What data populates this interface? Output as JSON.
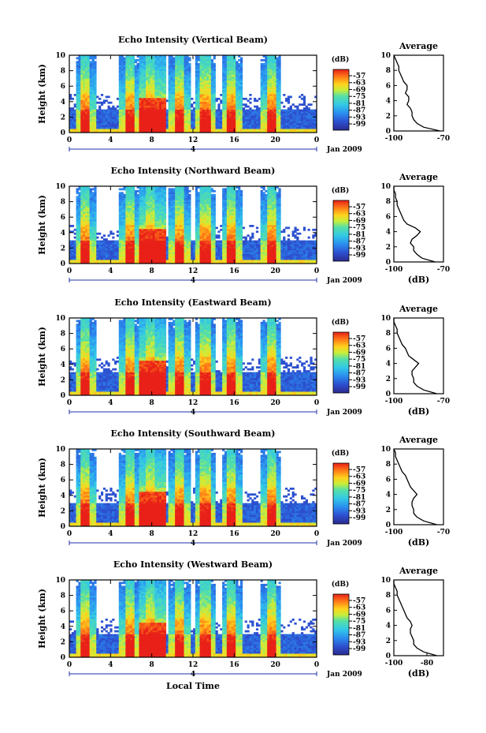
{
  "chart_data": [
    {
      "type": "heatmap",
      "title": "Echo Intensity (Vertical Beam)",
      "ylabel": "Height (km)",
      "x_ticks": [
        "0",
        "4",
        "8",
        "12",
        "16",
        "20",
        "0"
      ],
      "y_ticks": [
        "0",
        "2",
        "4",
        "6",
        "8",
        "10"
      ],
      "xlim": [
        0,
        24
      ],
      "ylim": [
        0,
        10
      ],
      "date_label": "Jan 2009",
      "day_label": "4",
      "colorbar": {
        "label": "(dB)",
        "levels": [
          "-57",
          "-63",
          "-69",
          "-75",
          "-81",
          "-87",
          "-93",
          "-99"
        ],
        "range": [
          -99,
          -57
        ]
      },
      "rain_events_hours": [
        1.6,
        5.8,
        7.8,
        10.7,
        13.2,
        15.8,
        19.6
      ],
      "heavy_rain_hours": [
        6.7,
        9.3
      ],
      "average_profile": {
        "title": "Average",
        "xlabel": "",
        "x_ticks": [
          "-100",
          "-70"
        ],
        "xlim": [
          -100,
          -70
        ],
        "y_ticks": [
          "0",
          "2",
          "4",
          "6",
          "8",
          "10"
        ],
        "x": [
          -72,
          -82,
          -86,
          -88,
          -89,
          -89,
          -90,
          -92,
          -91,
          -91,
          -93,
          -92,
          -92,
          -94,
          -95,
          -96,
          -97,
          -97,
          -98,
          -99,
          -100
        ],
        "y": [
          0,
          0.5,
          1,
          1.5,
          2,
          2.5,
          3,
          3.5,
          4,
          4.5,
          5,
          5.5,
          6,
          6.5,
          7,
          7.5,
          8,
          8.5,
          9,
          9.5,
          10
        ]
      }
    },
    {
      "type": "heatmap",
      "title": "Echo Intensity (Northward Beam)",
      "ylabel": "Height (km)",
      "x_ticks": [
        "0",
        "4",
        "8",
        "12",
        "16",
        "20",
        "0"
      ],
      "y_ticks": [
        "0",
        "2",
        "4",
        "6",
        "8",
        "10"
      ],
      "xlim": [
        0,
        24
      ],
      "ylim": [
        0,
        10
      ],
      "date_label": "Jan 2009",
      "day_label": "4",
      "colorbar": {
        "label": "(dB)",
        "levels": [
          "-57",
          "-63",
          "-69",
          "-75",
          "-81",
          "-87",
          "-93",
          "-99"
        ],
        "range": [
          -99,
          -57
        ]
      },
      "rain_events_hours": [
        1.6,
        5.8,
        7.8,
        10.7,
        13.2,
        15.8,
        19.6
      ],
      "heavy_rain_hours": [
        6.7,
        9.3
      ],
      "average_profile": {
        "title": "Average",
        "xlabel": "(dB)",
        "x_ticks": [
          "-100",
          "-70"
        ],
        "xlim": [
          -100,
          -70
        ],
        "y_ticks": [
          "0",
          "2",
          "4",
          "6",
          "8",
          "10"
        ],
        "x": [
          -75,
          -83,
          -86,
          -88,
          -88,
          -90,
          -89,
          -86,
          -84,
          -87,
          -92,
          -94,
          -95,
          -96,
          -97,
          -98,
          -98,
          -99,
          -99,
          -100,
          -100
        ],
        "y": [
          0,
          0.5,
          1,
          1.5,
          2,
          2.5,
          3,
          3.5,
          4,
          4.5,
          5,
          5.5,
          6,
          6.5,
          7,
          7.5,
          8,
          8.5,
          9,
          9.5,
          10
        ]
      }
    },
    {
      "type": "heatmap",
      "title": "Echo Intensity (Eastward Beam)",
      "ylabel": "Height (km)",
      "x_ticks": [
        "0",
        "4",
        "8",
        "12",
        "16",
        "20",
        "0"
      ],
      "y_ticks": [
        "0",
        "2",
        "4",
        "6",
        "8",
        "10"
      ],
      "xlim": [
        0,
        24
      ],
      "ylim": [
        0,
        10
      ],
      "date_label": "Jan 2009",
      "day_label": "4",
      "colorbar": {
        "label": "(dB)",
        "levels": [
          "-57",
          "-63",
          "-69",
          "-75",
          "-81",
          "-87",
          "-93",
          "-99"
        ],
        "range": [
          -99,
          -57
        ]
      },
      "rain_events_hours": [
        1.6,
        5.8,
        7.8,
        10.7,
        13.2,
        15.8,
        19.6
      ],
      "heavy_rain_hours": [
        6.7,
        9.3
      ],
      "average_profile": {
        "title": "Average",
        "xlabel": "(dB)",
        "x_ticks": [
          "-100",
          "-70"
        ],
        "xlim": [
          -100,
          -70
        ],
        "y_ticks": [
          "0",
          "2",
          "4",
          "6",
          "8",
          "10"
        ],
        "x": [
          -74,
          -82,
          -86,
          -88,
          -88,
          -89,
          -89,
          -87,
          -85,
          -88,
          -91,
          -92,
          -93,
          -95,
          -96,
          -97,
          -98,
          -98,
          -99,
          -100,
          -100
        ],
        "y": [
          0,
          0.5,
          1,
          1.5,
          2,
          2.5,
          3,
          3.5,
          4,
          4.5,
          5,
          5.5,
          6,
          6.5,
          7,
          7.5,
          8,
          8.5,
          9,
          9.5,
          10
        ]
      }
    },
    {
      "type": "heatmap",
      "title": "Echo Intensity (Southward Beam)",
      "ylabel": "Height (km)",
      "x_ticks": [
        "0",
        "4",
        "8",
        "12",
        "16",
        "20",
        "0"
      ],
      "y_ticks": [
        "0",
        "2",
        "4",
        "6",
        "8",
        "10"
      ],
      "xlim": [
        0,
        24
      ],
      "ylim": [
        0,
        10
      ],
      "date_label": "Jan 2009",
      "day_label": "4",
      "colorbar": {
        "label": "(dB)",
        "levels": [
          "-57",
          "-63",
          "-69",
          "-75",
          "-81",
          "-87",
          "-93",
          "-99"
        ],
        "range": [
          -99,
          -57
        ]
      },
      "rain_events_hours": [
        1.6,
        5.8,
        7.8,
        10.7,
        13.2,
        15.8,
        19.6
      ],
      "heavy_rain_hours": [
        6.7,
        9.3
      ],
      "average_profile": {
        "title": "Average",
        "xlabel": "(dB)",
        "x_ticks": [
          "-100",
          "-70"
        ],
        "xlim": [
          -100,
          -70
        ],
        "y_ticks": [
          "0",
          "2",
          "4",
          "6",
          "8",
          "10"
        ],
        "x": [
          -74,
          -82,
          -86,
          -88,
          -88,
          -89,
          -89,
          -88,
          -86,
          -88,
          -90,
          -91,
          -92,
          -93,
          -95,
          -96,
          -97,
          -98,
          -99,
          -99,
          -100
        ],
        "y": [
          0,
          0.5,
          1,
          1.5,
          2,
          2.5,
          3,
          3.5,
          4,
          4.5,
          5,
          5.5,
          6,
          6.5,
          7,
          7.5,
          8,
          8.5,
          9,
          9.5,
          10
        ]
      }
    },
    {
      "type": "heatmap",
      "title": "Echo Intensity (Westward Beam)",
      "ylabel": "Height (km)",
      "xlabel": "Local Time",
      "x_ticks": [
        "0",
        "4",
        "8",
        "12",
        "16",
        "20",
        "0"
      ],
      "y_ticks": [
        "0",
        "2",
        "4",
        "6",
        "8",
        "10"
      ],
      "xlim": [
        0,
        24
      ],
      "ylim": [
        0,
        10
      ],
      "date_label": "Jan 2009",
      "day_label": "4",
      "colorbar": {
        "label": "(dB)",
        "levels": [
          "-57",
          "-63",
          "-69",
          "-75",
          "-81",
          "-87",
          "-93",
          "-99"
        ],
        "range": [
          -99,
          -57
        ]
      },
      "rain_events_hours": [
        1.6,
        5.8,
        7.8,
        10.7,
        13.2,
        15.8,
        19.6
      ],
      "heavy_rain_hours": [
        6.7,
        9.3
      ],
      "average_profile": {
        "title": "Average",
        "xlabel": "(dB)",
        "x_ticks": [
          "-100",
          "-80"
        ],
        "xlim": [
          -100,
          -70
        ],
        "y_ticks": [
          "0",
          "2",
          "4",
          "6",
          "8",
          "10"
        ],
        "x": [
          -74,
          -82,
          -86,
          -88,
          -88,
          -89,
          -90,
          -90,
          -89,
          -90,
          -92,
          -93,
          -94,
          -95,
          -96,
          -97,
          -98,
          -98,
          -99,
          -100,
          -100
        ],
        "y": [
          0,
          0.5,
          1,
          1.5,
          2,
          2.5,
          3,
          3.5,
          4,
          4.5,
          5,
          5.5,
          6,
          6.5,
          7,
          7.5,
          8,
          8.5,
          9,
          9.5,
          10
        ]
      }
    }
  ]
}
